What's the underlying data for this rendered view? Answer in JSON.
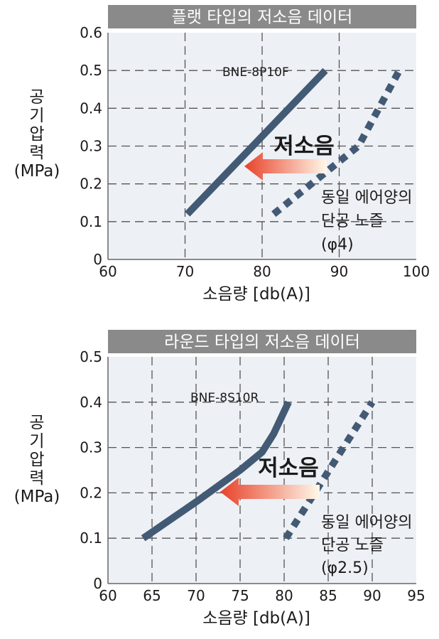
{
  "colors": {
    "banner": "#8a8a8a",
    "plot_bg": "#edf0f5",
    "series": "#435a75",
    "arrow_start": "#e8422a",
    "arrow_end": "#fff8ea"
  },
  "chart_data": [
    {
      "type": "line",
      "title": "플랫 타입의 저소음 데이터",
      "xlabel": "소음량 [db(A)]",
      "ylabel_lines": [
        "공",
        "기",
        "압",
        "력",
        "(MPa)"
      ],
      "xlim": [
        60,
        100
      ],
      "ylim": [
        0,
        0.6
      ],
      "x_ticks": [
        "60",
        "70",
        "80",
        "90",
        "100"
      ],
      "y_ticks": [
        "0",
        "0.1",
        "0.2",
        "0.3",
        "0.4",
        "0.5",
        "0.6"
      ],
      "grid": true,
      "series": [
        {
          "name": "BNE-8P10F",
          "style": "solid",
          "x": [
            70.3,
            88.2
          ],
          "y": [
            0.12,
            0.5
          ]
        },
        {
          "name": "동일 에어양의 단공 노즐 (φ4)",
          "style": "dotted",
          "x": [
            81.5,
            92.5,
            97.8
          ],
          "y": [
            0.12,
            0.3,
            0.5
          ]
        }
      ],
      "series_label": "BNE-8P10F",
      "callout": "저소음",
      "note_lines": [
        "동일 에어양의",
        "단공 노즐",
        "(φ4)"
      ]
    },
    {
      "type": "line",
      "title": "라운드 타입의 저소음 데이터",
      "xlabel": "소음량 [db(A)]",
      "ylabel_lines": [
        "공",
        "기",
        "압",
        "력",
        "(MPa)"
      ],
      "xlim": [
        60,
        95
      ],
      "ylim": [
        0,
        0.5
      ],
      "x_ticks": [
        "60",
        "65",
        "70",
        "75",
        "80",
        "85",
        "90",
        "95"
      ],
      "y_ticks": [
        "0",
        "0.1",
        "0.2",
        "0.3",
        "0.4",
        "0.5"
      ],
      "grid": true,
      "series": [
        {
          "name": "BNE-8S10R",
          "style": "solid",
          "x": [
            64,
            70,
            75,
            77.5,
            78.8,
            80.5
          ],
          "y": [
            0.1,
            0.18,
            0.25,
            0.29,
            0.33,
            0.4
          ]
        },
        {
          "name": "동일 에어양의 단공 노즐 (φ2.5)",
          "style": "dotted",
          "x": [
            80.2,
            90
          ],
          "y": [
            0.1,
            0.4
          ]
        }
      ],
      "series_label": "BNE-8S10R",
      "callout": "저소음",
      "note_lines": [
        "동일 에어양의",
        "단공 노즐",
        "(φ2.5)"
      ]
    }
  ]
}
